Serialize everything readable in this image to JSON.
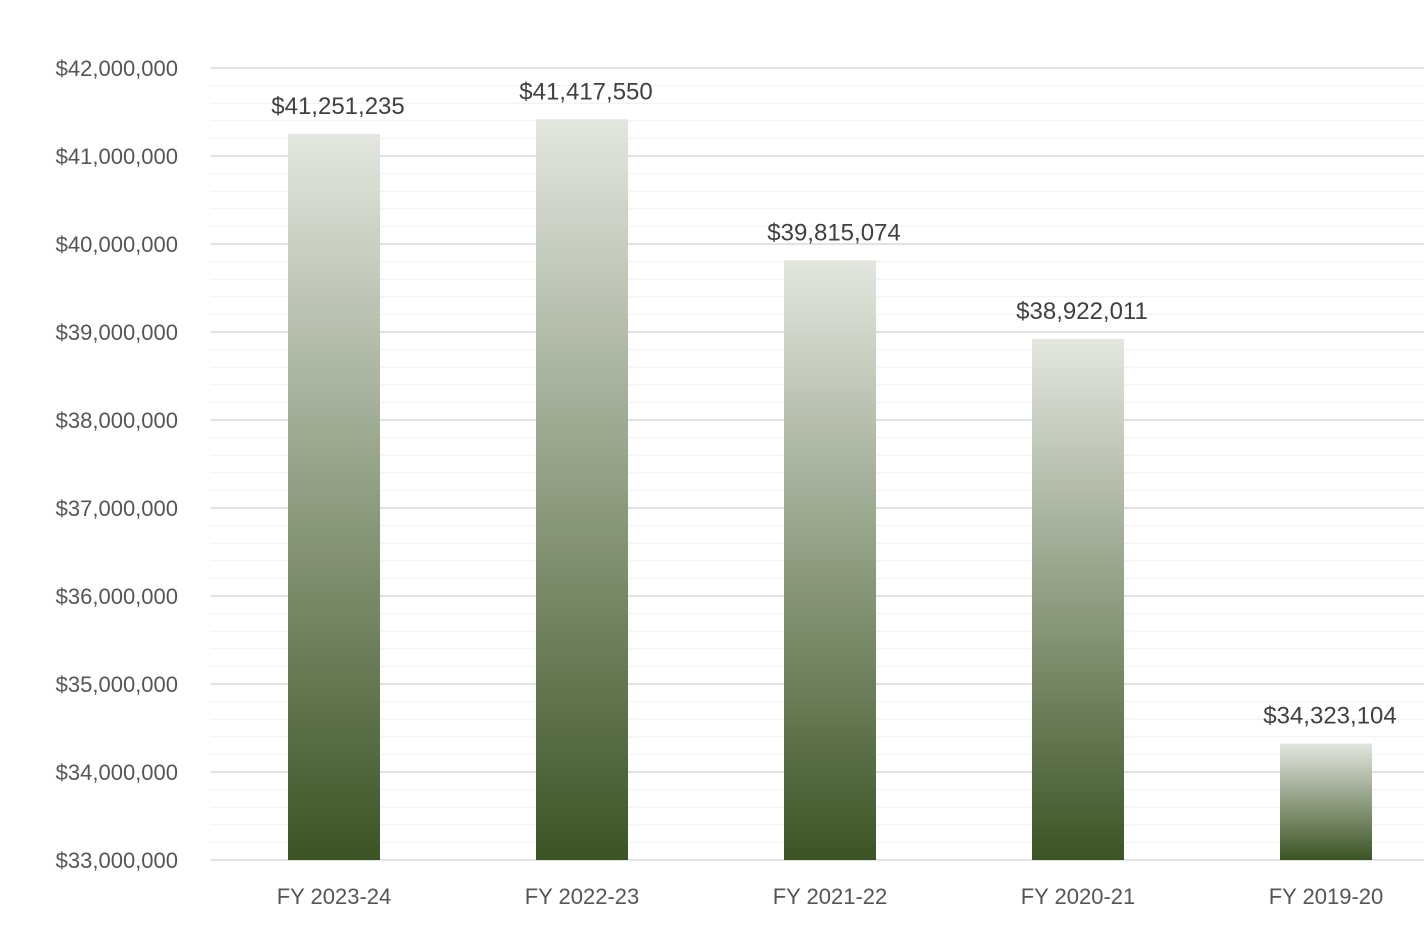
{
  "chart_data": {
    "type": "bar",
    "title": "",
    "xlabel": "",
    "ylabel": "",
    "categories": [
      "FY 2023-24",
      "FY 2022-23",
      "FY 2021-22",
      "FY 2020-21",
      "FY 2019-20"
    ],
    "values": [
      41251235,
      41417550,
      39815074,
      38922011,
      34323104
    ],
    "data_labels": [
      "$41,251,235",
      "$41,417,550",
      "$39,815,074",
      "$38,922,011",
      "$34,323,104"
    ],
    "ylim": [
      33000000,
      42000000
    ],
    "y_ticks": [
      33000000,
      34000000,
      35000000,
      36000000,
      37000000,
      38000000,
      39000000,
      40000000,
      41000000,
      42000000
    ],
    "y_tick_labels": [
      "$33,000,000",
      "$34,000,000",
      "$35,000,000",
      "$36,000,000",
      "$37,000,000",
      "$38,000,000",
      "$39,000,000",
      "$40,000,000",
      "$41,000,000",
      "$42,000,000"
    ],
    "grid": true,
    "legend": "none",
    "colors": {
      "bar_top": "#e3e7df",
      "bar_bottom": "#3b5424",
      "gridline": "#d9d9d9",
      "minor_gridline": "#efefef",
      "axis_text": "#555555",
      "label_text": "#404040"
    }
  }
}
